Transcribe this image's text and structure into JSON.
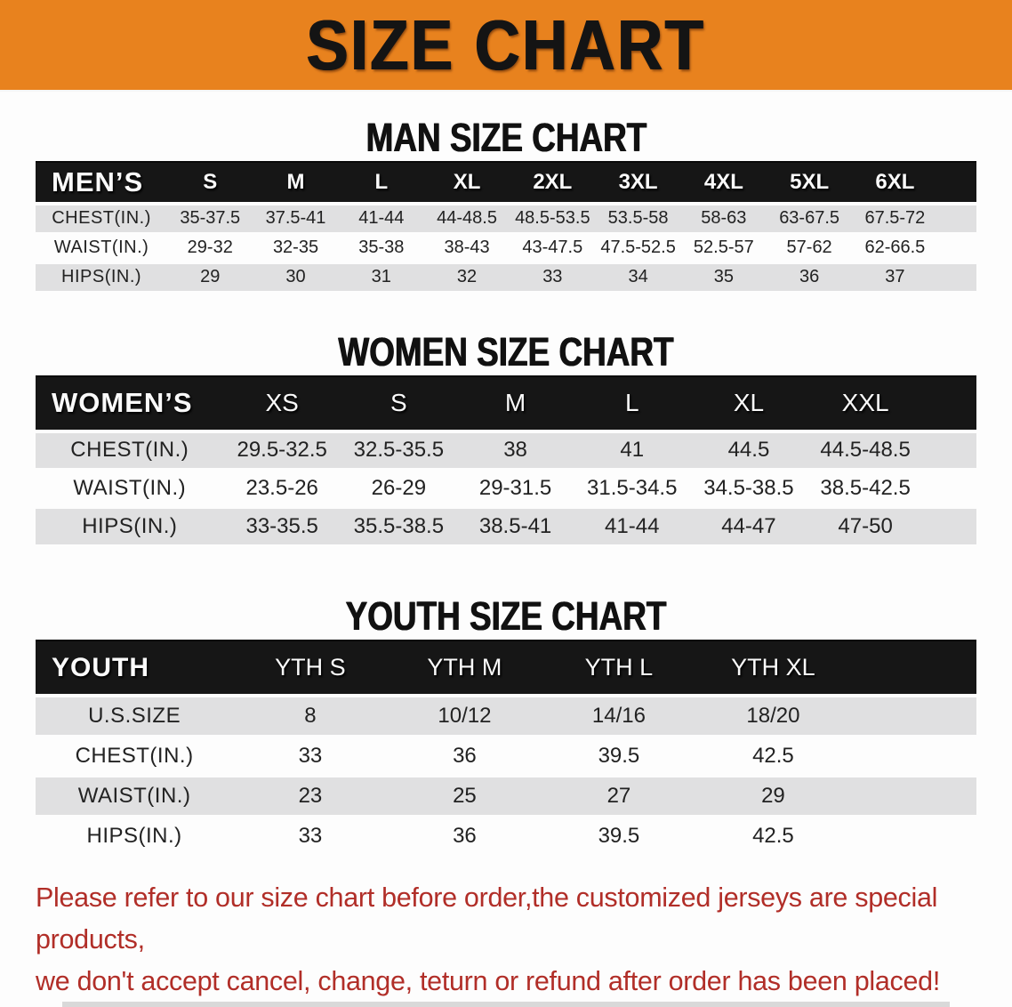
{
  "banner": {
    "title": "SIZE CHART"
  },
  "colors": {
    "banner_bg": "#E8821E",
    "banner_text": "#141414",
    "table_header_bg": "#161616",
    "table_header_text": "#FAFAFA",
    "row_stripe": "#E0E0E1",
    "disclaimer_text": "#B12E28"
  },
  "sections": [
    {
      "heading": "MAN SIZE CHART",
      "table": {
        "title": "MEN’S",
        "columns": [
          "S",
          "M",
          "L",
          "XL",
          "2XL",
          "3XL",
          "4XL",
          "5XL",
          "6XL"
        ],
        "rows": [
          {
            "label": "CHEST(IN.)",
            "values": [
              "35-37.5",
              "37.5-41",
              "41-44",
              "44-48.5",
              "48.5-53.5",
              "53.5-58",
              "58-63",
              "63-67.5",
              "67.5-72"
            ]
          },
          {
            "label": "WAIST(IN.)",
            "values": [
              "29-32",
              "32-35",
              "35-38",
              "38-43",
              "43-47.5",
              "47.5-52.5",
              "52.5-57",
              "57-62",
              "62-66.5"
            ]
          },
          {
            "label": "HIPS(IN.)",
            "values": [
              "29",
              "30",
              "31",
              "32",
              "33",
              "34",
              "35",
              "36",
              "37"
            ]
          }
        ]
      }
    },
    {
      "heading": "WOMEN SIZE CHART",
      "table": {
        "title": "WOMEN’S",
        "columns": [
          "XS",
          "S",
          "M",
          "L",
          "XL",
          "XXL"
        ],
        "rows": [
          {
            "label": "CHEST(IN.)",
            "values": [
              "29.5-32.5",
              "32.5-35.5",
              "38",
              "41",
              "44.5",
              "44.5-48.5"
            ]
          },
          {
            "label": "WAIST(IN.)",
            "values": [
              "23.5-26",
              "26-29",
              "29-31.5",
              "31.5-34.5",
              "34.5-38.5",
              "38.5-42.5"
            ]
          },
          {
            "label": "HIPS(IN.)",
            "values": [
              "33-35.5",
              "35.5-38.5",
              "38.5-41",
              "41-44",
              "44-47",
              "47-50"
            ]
          }
        ]
      }
    },
    {
      "heading": "YOUTH SIZE CHART",
      "table": {
        "title": "YOUTH",
        "columns": [
          "YTH S",
          "YTH M",
          "YTH L",
          "YTH XL"
        ],
        "rows": [
          {
            "label": "U.S.SIZE",
            "values": [
              "8",
              "10/12",
              "14/16",
              "18/20"
            ]
          },
          {
            "label": "CHEST(IN.)",
            "values": [
              "33",
              "36",
              "39.5",
              "42.5"
            ]
          },
          {
            "label": "WAIST(IN.)",
            "values": [
              "23",
              "25",
              "27",
              "29"
            ]
          },
          {
            "label": "HIPS(IN.)",
            "values": [
              "33",
              "36",
              "39.5",
              "42.5"
            ]
          }
        ]
      }
    }
  ],
  "disclaimer": {
    "line1": "Please refer to our size chart before order,the customized jerseys are special products,",
    "line2": "we don't accept cancel, change, teturn or refund after order has been placed!"
  }
}
